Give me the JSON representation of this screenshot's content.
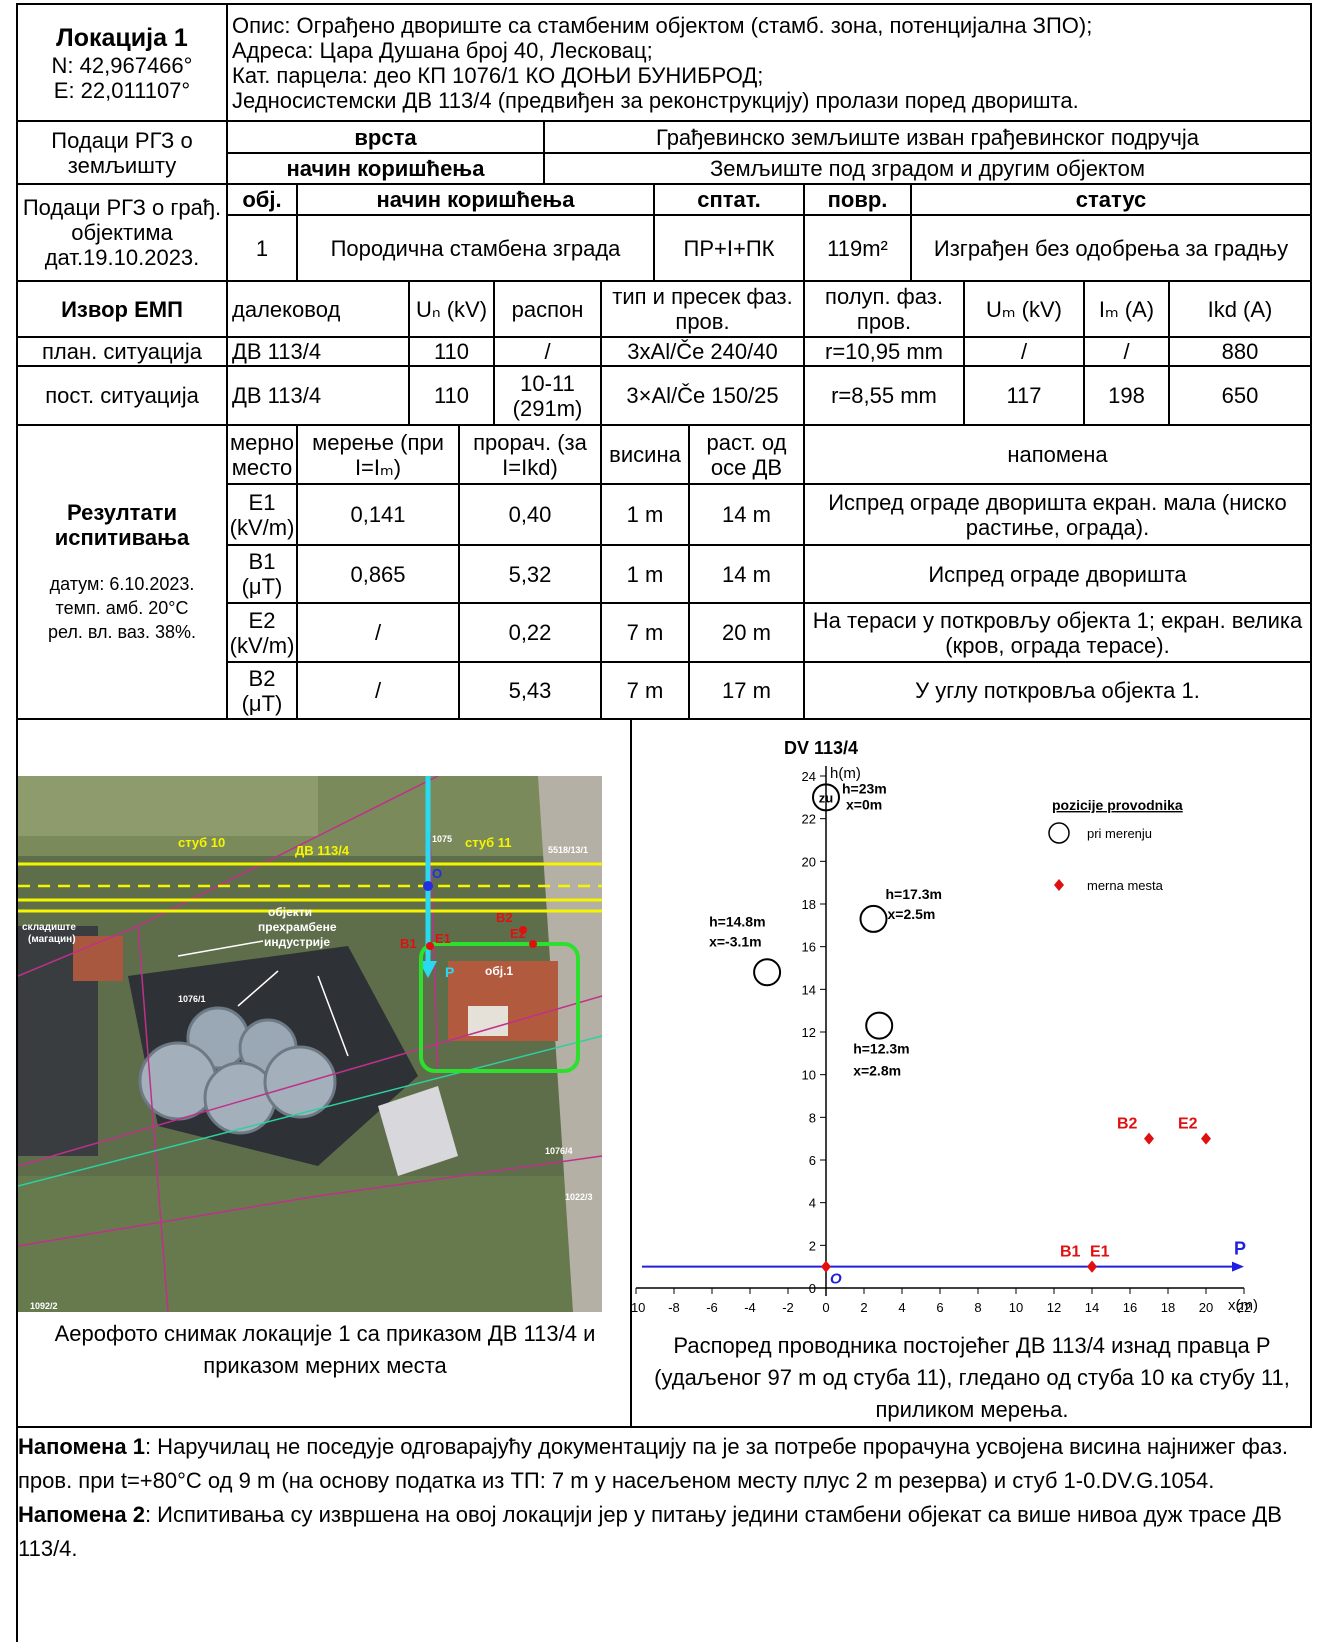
{
  "location": {
    "title": "Локација 1",
    "lat": "N: 42,967466°",
    "lon": "E: 22,011107°",
    "lines": [
      "Опис: Ограђено двориште са стамбеним објектом (стамб. зона, потенцијална ЗПО);",
      "Адреса: Цара Душана број 40, Лесковац;",
      "Кат. парцела: део КП 1076/1 КО ДОЊИ БУНИБРОД;",
      "Једносистемски ДВ 113/4 (предвиђен за реконструкцију) пролази поред дворишта."
    ]
  },
  "land": {
    "label": "Подаци РГЗ о земљишту",
    "rows": [
      [
        "врста",
        "Грађевинско земљиште изван грађевинског подручја"
      ],
      [
        "начин коришћења",
        "Земљиште под зградом и другим објектом"
      ]
    ]
  },
  "buildings": {
    "label": "Подаци РГЗ о грађ. објектима дат.19.10.2023.",
    "header": [
      "обј.",
      "начин коришћења",
      "сптат.",
      "повр.",
      "статус"
    ],
    "rows": [
      [
        "1",
        "Породична стамбена зграда",
        "ПР+I+ПК",
        "119m²",
        "Изграђен без одобрења за градњу"
      ]
    ]
  },
  "source": {
    "header": [
      "Извор ЕМП",
      "далековод",
      "Uₙ (kV)",
      "распон",
      "тип и пресек фаз. пров.",
      "полуп. фаз. пров.",
      "Uₘ (kV)",
      "Iₘ (A)",
      "Ikd (A)"
    ],
    "rows": [
      [
        "план. ситуација",
        "ДВ 113/4",
        "110",
        "/",
        "3xAl/Če 240/40",
        "r=10,95 mm",
        "/",
        "/",
        "880"
      ],
      [
        "пост. ситуација",
        "ДВ 113/4",
        "110",
        "10-11 (291m)",
        "3×Al/Če 150/25",
        "r=8,55 mm",
        "117",
        "198",
        "650"
      ]
    ]
  },
  "results": {
    "title": "Резултати испитивања",
    "conditions": [
      "датум: 6.10.2023.",
      "темп. амб. 20°C",
      "рел. вл. ваз. 38%."
    ],
    "header": [
      "мерно место",
      "мерење (при I=Iₘ)",
      "прорач. (за I=Ikd)",
      "висина",
      "раст. од осе ДВ",
      "напомена"
    ],
    "rows": [
      [
        "E1 (kV/m)",
        "0,141",
        "0,40",
        "1 m",
        "14 m",
        "Испред ограде дворишта екран. мала (ниско растиње, ограда)."
      ],
      [
        "B1 (μT)",
        "0,865",
        "5,32",
        "1 m",
        "14 m",
        "Испред ограде дворишта"
      ],
      [
        "E2 (kV/m)",
        "/",
        "0,22",
        "7 m",
        "20 m",
        "На тераси у поткровљу објекта 1; екран. велика (кров, ограда терасе)."
      ],
      [
        "B2 (μT)",
        "/",
        "5,43",
        "7 m",
        "17 m",
        "У углу поткровља објекта 1."
      ]
    ]
  },
  "photo": {
    "caption": "Аерофото снимак локације 1 са приказом ДВ 113/4 и приказом мерних места",
    "labels": [
      "стуб 10",
      "ДВ 113/4",
      "стуб 11",
      "складиште",
      "(магацин)",
      "објекти",
      "прехрамбене",
      "индустрије",
      "B1",
      "E1",
      "B2",
      "E2",
      "обј.1",
      "P",
      "O",
      "1076/1",
      "1076/4",
      "1092/2",
      "1075",
      "5518/13/1",
      "1022/3"
    ]
  },
  "diagram": {
    "title": "DV 113/4",
    "y_label": "h(m)",
    "x_label": "x(m)",
    "xlim": [
      -10,
      22
    ],
    "ylim": [
      0,
      24
    ],
    "xticks": [
      -10,
      -8,
      -6,
      -4,
      -2,
      0,
      2,
      4,
      6,
      8,
      10,
      12,
      14,
      16,
      18,
      20,
      22
    ],
    "yticks": [
      0,
      2,
      4,
      6,
      8,
      10,
      12,
      14,
      16,
      18,
      20,
      22,
      24
    ],
    "legend_title": "pozicije provodnika",
    "legend": [
      "pri merenju",
      "merna mesta"
    ],
    "conductors": [
      {
        "x": 0,
        "h": 23,
        "mark": "zu",
        "h_label": "h=23m",
        "x_label": "x=0m"
      },
      {
        "x": 2.5,
        "h": 17.3,
        "h_label": "h=17.3m",
        "x_label": "x=2.5m"
      },
      {
        "x": -3.1,
        "h": 14.8,
        "h_label": "h=14.8m",
        "x_label": "x=-3.1m"
      },
      {
        "x": 2.8,
        "h": 12.3,
        "h_label": "h=12.3m",
        "x_label": "x=2.8m"
      }
    ],
    "points": [
      {
        "label": "B2",
        "x": 17,
        "h": 7
      },
      {
        "label": "E2",
        "x": 20,
        "h": 7
      },
      {
        "label": "B1",
        "x": 14,
        "h": 1
      },
      {
        "label": "E1",
        "x": 14,
        "h": 1
      }
    ],
    "origin": {
      "label": "O",
      "x": 0,
      "h": 1
    },
    "path": {
      "label": "P",
      "h": 1
    },
    "caption": "Распоред проводника постојећег ДВ 113/4 изнад правца P (удаљеног 97 m од стуба 11), гледано од стуба 10 ка стубу 11, приликом мерења."
  },
  "notes": [
    {
      "label": "Напомена 1",
      "text": ": Наручилац не поседује одговарајућу документацију па је за потребе прорачуна усвојена висина најнижег фаз. пров. при t=+80°C од 9 m (на основу податка из ТП: 7 m у насељеном месту плус 2 m резерва) и стуб 1-0.DV.G.1054."
    },
    {
      "label": "Напомена 2",
      "text": ": Испитивања су извршена на овој локацији јер у питању једини стамбени објекат са више нивоа дуж трасе ДВ 113/4."
    }
  ]
}
